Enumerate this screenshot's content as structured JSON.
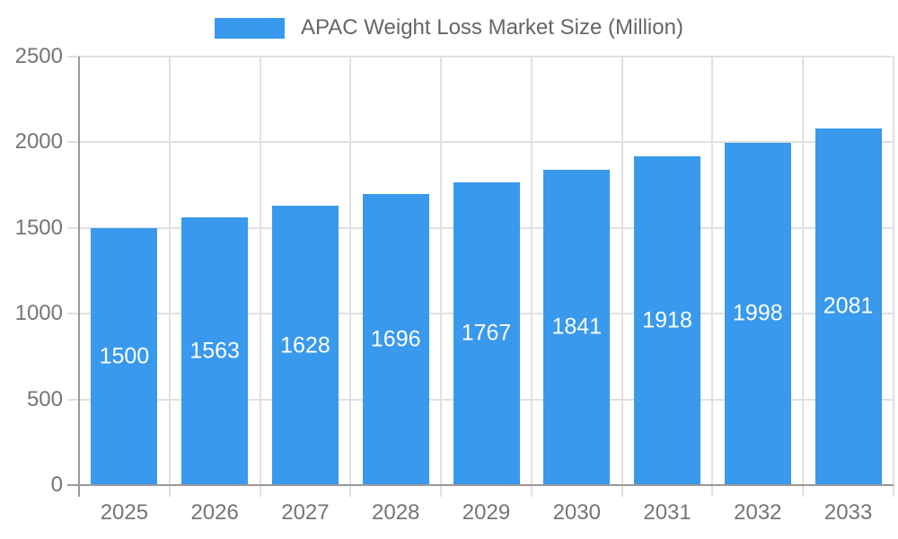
{
  "legend": {
    "label": "APAC Weight Loss Market Size (Million)"
  },
  "chart_data": {
    "type": "bar",
    "title": "APAC Weight Loss Market Size (Million)",
    "series_name": "APAC Weight Loss Market Size (Million)",
    "categories": [
      "2025",
      "2026",
      "2027",
      "2028",
      "2029",
      "2030",
      "2031",
      "2032",
      "2033"
    ],
    "values": [
      1500,
      1563,
      1628,
      1696,
      1767,
      1841,
      1918,
      1998,
      2081
    ],
    "value_labels": [
      "1500",
      "1563",
      "1628",
      "1696",
      "1767",
      "1841",
      "1918",
      "1998",
      "2081"
    ],
    "xlabel": "",
    "ylabel": "",
    "ylim": [
      0,
      2500
    ],
    "yticks": [
      0,
      500,
      1000,
      1500,
      2000,
      2500
    ],
    "grid": true,
    "legend_position": "top",
    "bar_color": "#3999ec",
    "value_label_color": "#ffffff",
    "axis_text_color": "#757575",
    "legend_text_color": "#666666",
    "grid_color": "#e0e0e0",
    "axis_line_color": "#999999",
    "background_color": "#ffffff"
  }
}
